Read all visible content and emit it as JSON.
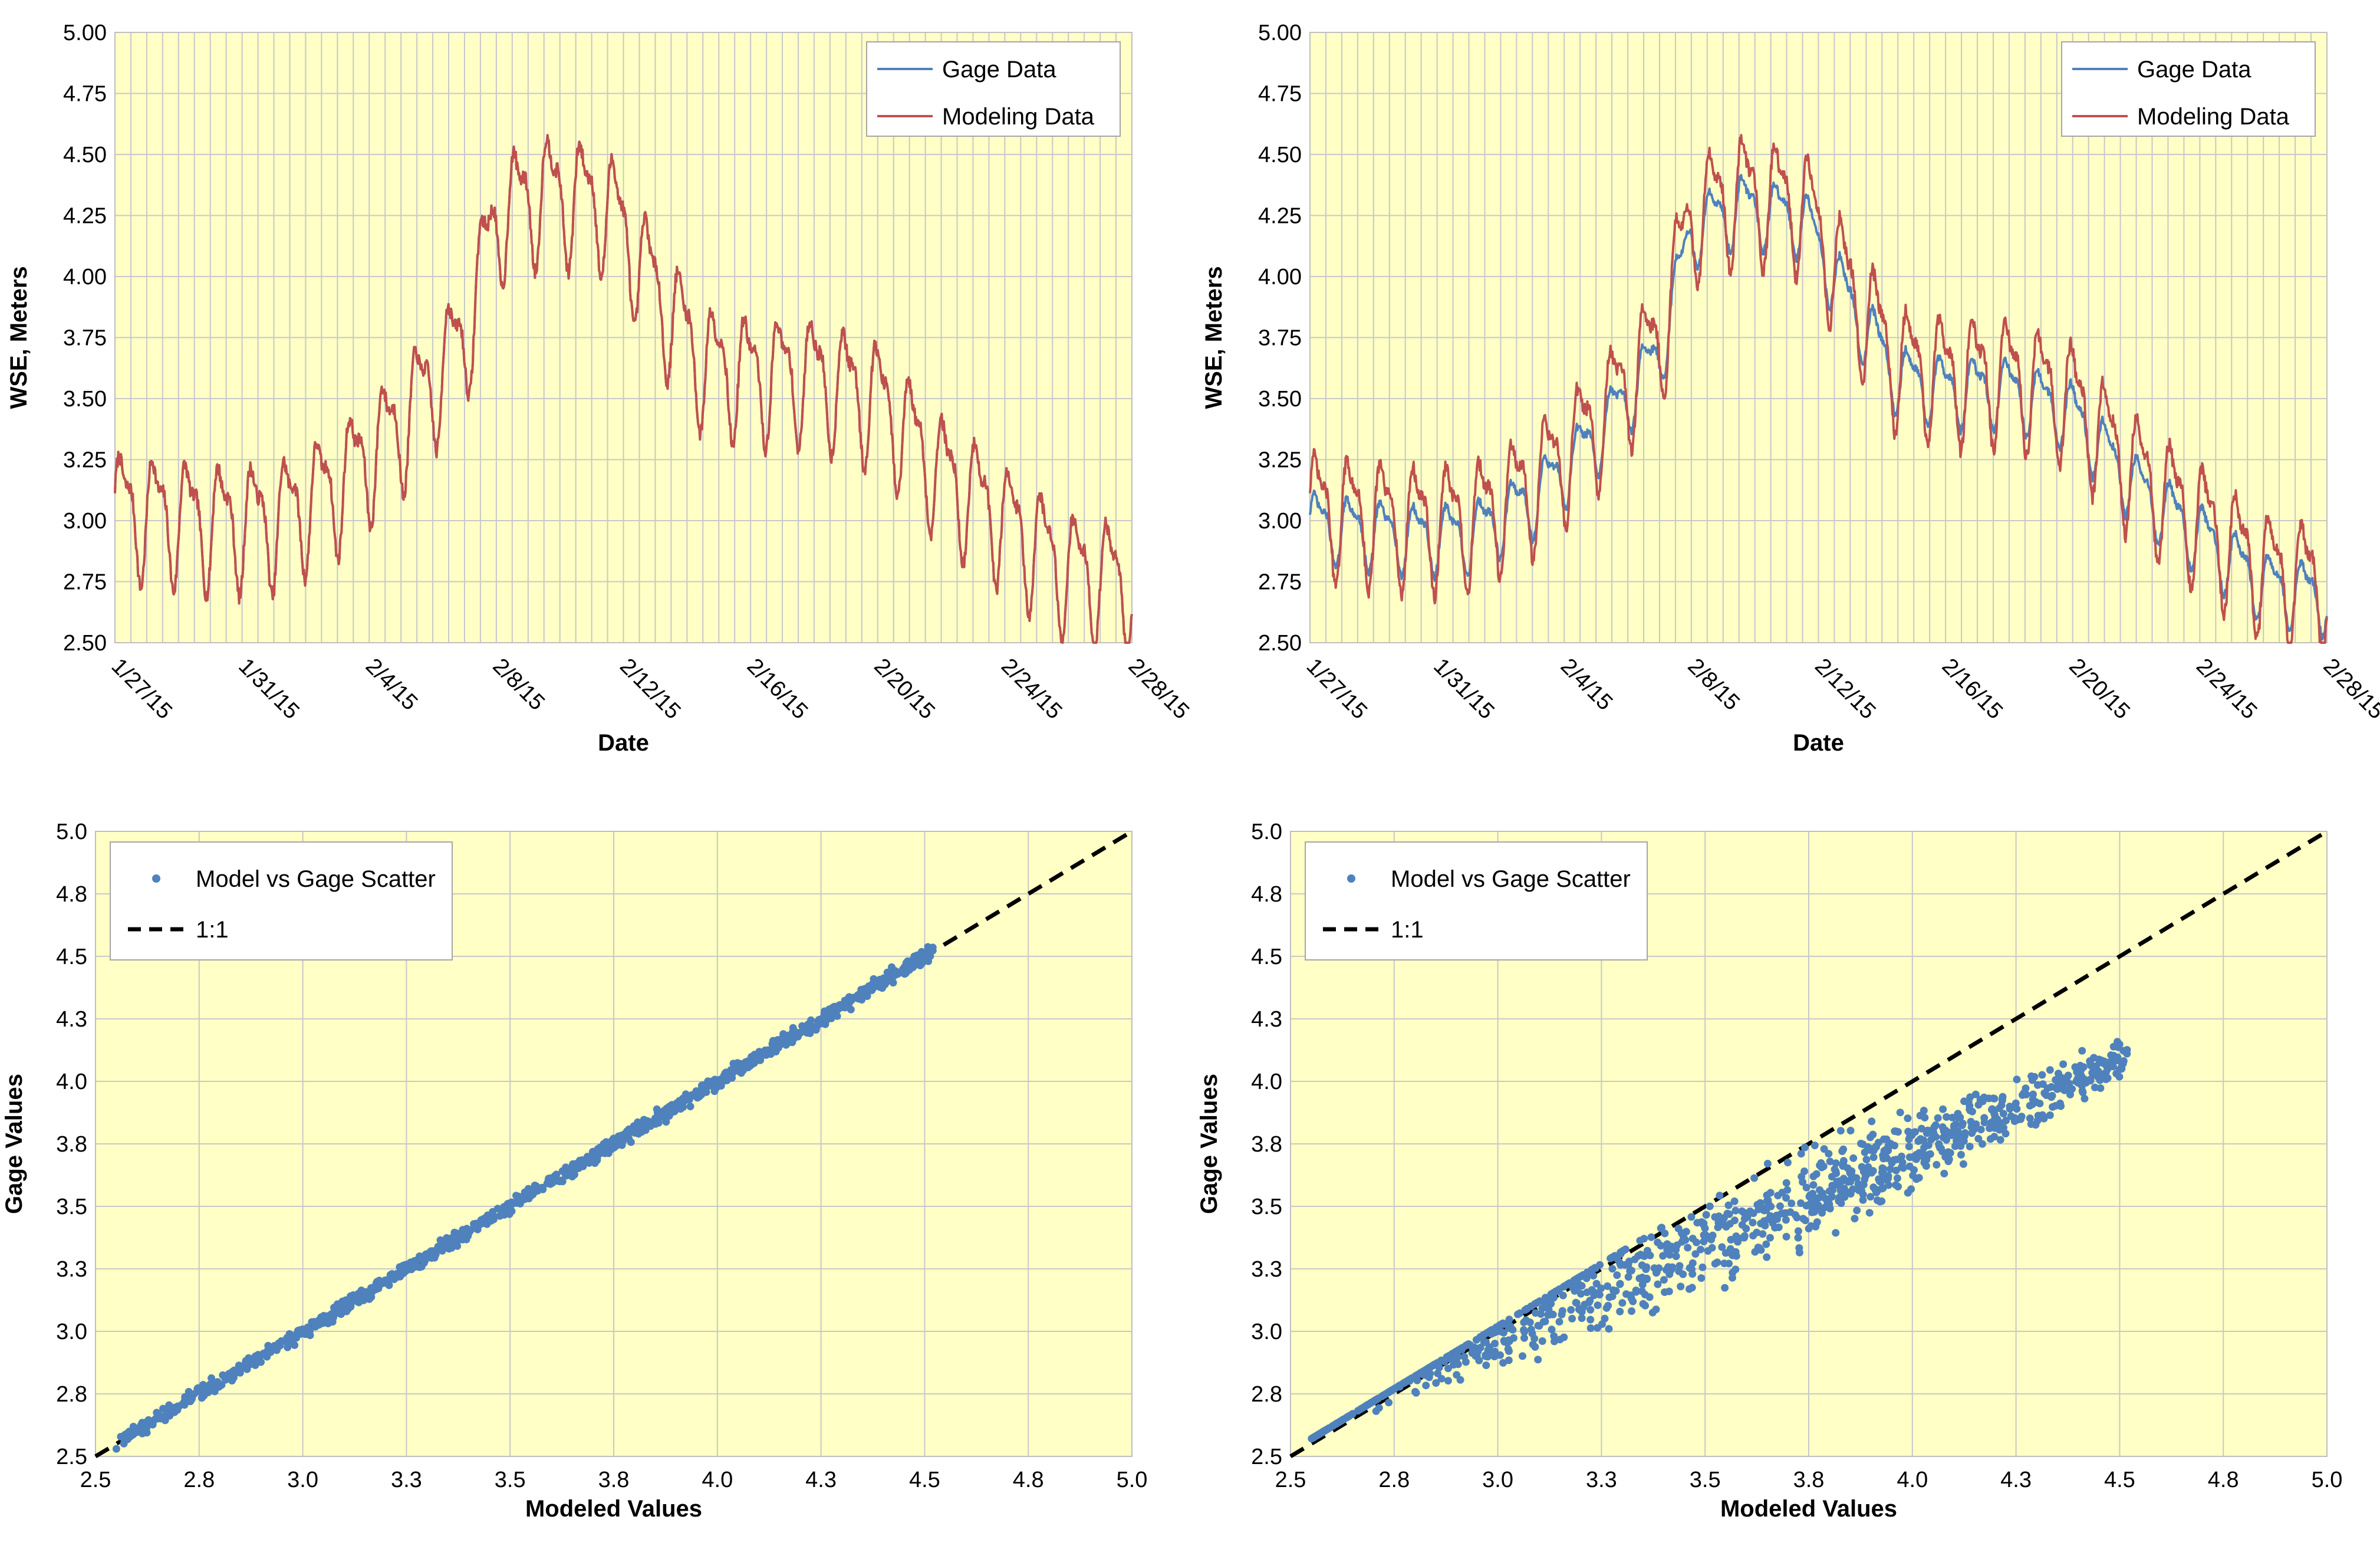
{
  "colors": {
    "gage": "#4f81bd",
    "model": "#c0504d",
    "scatter": "#4f81bd",
    "one_to_one": "#000000",
    "plot_background": "#ffffc6",
    "grid": "#c8c8c8"
  },
  "chart_data": [
    {
      "id": "ts-left",
      "type": "line",
      "title": "",
      "xlabel": "Date",
      "ylabel": "WSE, Meters",
      "x_range_days": [
        0,
        32
      ],
      "ylim": [
        2.5,
        5.0
      ],
      "y_ticks": [
        "2.50",
        "2.75",
        "3.00",
        "3.25",
        "3.50",
        "3.75",
        "4.00",
        "4.25",
        "4.50",
        "4.75",
        "5.00"
      ],
      "x_ticks": [
        "1/27/15",
        "1/31/15",
        "2/4/15",
        "2/8/15",
        "2/12/15",
        "2/16/15",
        "2/20/15",
        "2/24/15",
        "2/28/15"
      ],
      "x_tick_days": [
        0,
        4,
        8,
        12,
        16,
        20,
        24,
        28,
        32
      ],
      "legend": [
        "Gage Data",
        "Modeling Data"
      ],
      "legend_position": "top-right",
      "trend_points": [
        {
          "day": 0,
          "wse": 3.05
        },
        {
          "day": 3,
          "wse": 3.0
        },
        {
          "day": 5,
          "wse": 3.0
        },
        {
          "day": 7,
          "wse": 3.15
        },
        {
          "day": 9,
          "wse": 3.4
        },
        {
          "day": 11,
          "wse": 3.75
        },
        {
          "day": 12,
          "wse": 4.25
        },
        {
          "day": 13.5,
          "wse": 4.35
        },
        {
          "day": 15.5,
          "wse": 4.3
        },
        {
          "day": 17,
          "wse": 3.95
        },
        {
          "day": 18.5,
          "wse": 3.65
        },
        {
          "day": 20,
          "wse": 3.6
        },
        {
          "day": 22,
          "wse": 3.6
        },
        {
          "day": 24,
          "wse": 3.5
        },
        {
          "day": 26,
          "wse": 3.2
        },
        {
          "day": 28,
          "wse": 3.0
        },
        {
          "day": 30,
          "wse": 2.8
        },
        {
          "day": 32,
          "wse": 2.75
        }
      ],
      "tidal_amplitude_m": 0.22,
      "series": [
        {
          "name": "Gage Data",
          "amplitude_scale": 1.0,
          "offset": 0.0
        },
        {
          "name": "Modeling Data",
          "amplitude_scale": 1.0,
          "offset": 0.0
        }
      ]
    },
    {
      "id": "ts-right",
      "type": "line",
      "title": "",
      "xlabel": "Date",
      "ylabel": "WSE, Meters",
      "x_range_days": [
        0,
        32
      ],
      "ylim": [
        2.5,
        5.0
      ],
      "y_ticks": [
        "2.50",
        "2.75",
        "3.00",
        "3.25",
        "3.50",
        "3.75",
        "4.00",
        "4.25",
        "4.50",
        "4.75",
        "5.00"
      ],
      "x_ticks": [
        "1/27/15",
        "1/31/15",
        "2/4/15",
        "2/8/15",
        "2/12/15",
        "2/16/15",
        "2/20/15",
        "2/24/15",
        "2/28/15"
      ],
      "x_tick_days": [
        0,
        4,
        8,
        12,
        16,
        20,
        24,
        28,
        32
      ],
      "legend": [
        "Gage Data",
        "Modeling Data"
      ],
      "legend_position": "top-right",
      "trend_points": [
        {
          "day": 0,
          "wse": 3.05
        },
        {
          "day": 3,
          "wse": 3.0
        },
        {
          "day": 5,
          "wse": 3.0
        },
        {
          "day": 7,
          "wse": 3.15
        },
        {
          "day": 9,
          "wse": 3.4
        },
        {
          "day": 11,
          "wse": 3.75
        },
        {
          "day": 12,
          "wse": 4.25
        },
        {
          "day": 13.5,
          "wse": 4.35
        },
        {
          "day": 15.5,
          "wse": 4.3
        },
        {
          "day": 17,
          "wse": 3.95
        },
        {
          "day": 18.5,
          "wse": 3.65
        },
        {
          "day": 20,
          "wse": 3.6
        },
        {
          "day": 22,
          "wse": 3.6
        },
        {
          "day": 24,
          "wse": 3.5
        },
        {
          "day": 26,
          "wse": 3.2
        },
        {
          "day": 28,
          "wse": 3.0
        },
        {
          "day": 30,
          "wse": 2.8
        },
        {
          "day": 32,
          "wse": 2.75
        }
      ],
      "tidal_amplitude_m": 0.22,
      "series": [
        {
          "name": "Gage Data",
          "amplitude_scale": 0.55,
          "offset": -0.06
        },
        {
          "name": "Modeling Data",
          "amplitude_scale": 1.0,
          "offset": 0.0
        }
      ]
    },
    {
      "id": "sc-left",
      "type": "scatter",
      "title": "",
      "xlabel": "Modeled Values",
      "ylabel": "Gage Values",
      "xlim": [
        2.5,
        5.0
      ],
      "ylim": [
        2.5,
        5.0
      ],
      "x_ticks": [
        "2.5",
        "2.8",
        "3.0",
        "3.3",
        "3.5",
        "3.8",
        "4.0",
        "4.3",
        "4.5",
        "4.8",
        "5.0"
      ],
      "y_ticks": [
        "2.5",
        "2.8",
        "3.0",
        "3.3",
        "3.5",
        "3.8",
        "4.0",
        "4.3",
        "4.5",
        "4.8",
        "5.0"
      ],
      "tick_values": [
        2.5,
        2.75,
        3.0,
        3.25,
        3.5,
        3.75,
        4.0,
        4.25,
        4.5,
        4.75,
        5.0
      ],
      "legend": [
        "Model vs Gage Scatter",
        "1:1"
      ],
      "legend_position": "top-left",
      "one_to_one": [
        [
          2.5,
          2.5
        ],
        [
          5.0,
          5.0
        ]
      ],
      "scatter_fit": {
        "x_min": 2.55,
        "x_max": 4.52,
        "slope": 1.0,
        "intercept": 0.0,
        "spread": 0.03,
        "points": 1100
      }
    },
    {
      "id": "sc-right",
      "type": "scatter",
      "title": "",
      "xlabel": "Modeled Values",
      "ylabel": "Gage Values",
      "xlim": [
        2.5,
        5.0
      ],
      "ylim": [
        2.5,
        5.0
      ],
      "x_ticks": [
        "2.5",
        "2.8",
        "3.0",
        "3.3",
        "3.5",
        "3.8",
        "4.0",
        "4.3",
        "4.5",
        "4.8",
        "5.0"
      ],
      "y_ticks": [
        "2.5",
        "2.8",
        "3.0",
        "3.3",
        "3.5",
        "3.8",
        "4.0",
        "4.3",
        "4.5",
        "4.8",
        "5.0"
      ],
      "tick_values": [
        2.5,
        2.75,
        3.0,
        3.25,
        3.5,
        3.75,
        4.0,
        4.25,
        4.5,
        4.75,
        5.0
      ],
      "legend": [
        "Model vs Gage Scatter",
        "1:1"
      ],
      "legend_position": "top-left",
      "one_to_one": [
        [
          2.5,
          2.5
        ],
        [
          5.0,
          5.0
        ]
      ],
      "scatter_fit": {
        "x_min": 2.55,
        "x_max": 4.52,
        "slope": 0.72,
        "intercept": 0.84,
        "spread": 0.14,
        "points": 1100
      }
    }
  ]
}
